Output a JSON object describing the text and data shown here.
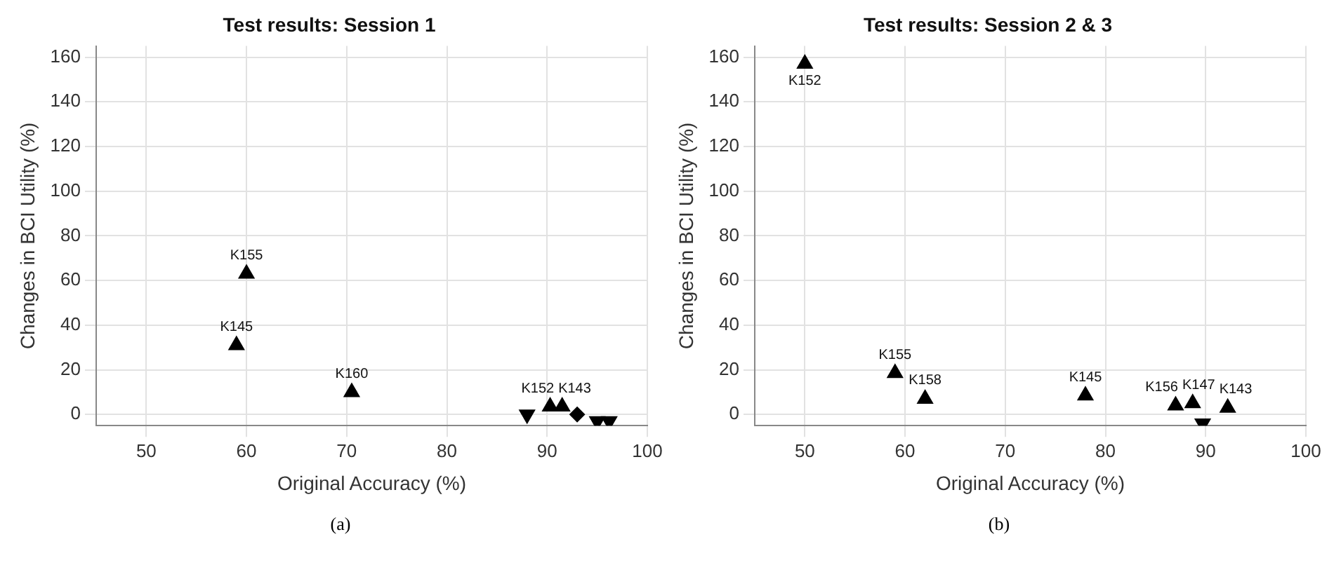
{
  "chart_data": [
    {
      "type": "scatter",
      "title": "Test results: Session 1",
      "xlabel": "Original Accuracy (%)",
      "ylabel": "Changes in BCI Utility (%)",
      "xlim": [
        45,
        100
      ],
      "ylim": [
        -5,
        165
      ],
      "xticks": [
        50,
        60,
        70,
        80,
        90,
        100
      ],
      "yticks": [
        0,
        20,
        40,
        60,
        80,
        100,
        120,
        140,
        160
      ],
      "grid": true,
      "legend": false,
      "series": [
        {
          "color": "#000000",
          "marker": "triangle",
          "x": [
            60,
            59,
            70.5,
            90.3,
            91.5
          ],
          "values": [
            63,
            31,
            10,
            3.5,
            3.5
          ]
        },
        {
          "color": "#000000",
          "marker": "triangle-down",
          "x": [
            88,
            95,
            96.2
          ],
          "values": [
            0,
            -3,
            -3
          ]
        },
        {
          "color": "#000000",
          "marker": "diamond",
          "x": [
            93
          ],
          "values": [
            0
          ]
        }
      ],
      "annotations": [
        {
          "text": "K155",
          "x": 60,
          "y": 63
        },
        {
          "text": "K145",
          "x": 59,
          "y": 31
        },
        {
          "text": "K160",
          "x": 70.5,
          "y": 10
        },
        {
          "text": "K152",
          "x": 90.3,
          "y": 3.5
        },
        {
          "text": "K143",
          "x": 91.5,
          "y": 3.5
        },
        "(a)"
      ]
    },
    {
      "type": "scatter",
      "title": "Test results: Session 2 & 3",
      "xlabel": "Original Accuracy (%)",
      "ylabel": "Changes in BCI Utility (%)",
      "xlim": [
        45,
        100
      ],
      "ylim": [
        -5,
        165
      ],
      "xticks": [
        50,
        60,
        70,
        80,
        90,
        100
      ],
      "yticks": [
        0,
        20,
        40,
        60,
        80,
        100,
        120,
        140,
        160
      ],
      "grid": true,
      "legend": false,
      "series": [
        {
          "color": "#000000",
          "marker": "triangle",
          "x": [
            50,
            59,
            62,
            78,
            87,
            88.7,
            92.2
          ],
          "values": [
            157,
            18.5,
            7,
            8.5,
            4,
            5,
            3
          ]
        },
        {
          "color": "#000000",
          "marker": "triangle-down",
          "x": [
            89.7
          ],
          "values": [
            -4
          ]
        }
      ],
      "annotations": [
        {
          "text": "K152",
          "x": 50,
          "y": 157
        },
        {
          "text": "K155",
          "x": 59,
          "y": 18.5
        },
        {
          "text": "K158",
          "x": 62,
          "y": 7
        },
        {
          "text": "K145",
          "x": 78,
          "y": 8.5
        },
        {
          "text": "K156",
          "x": 87,
          "y": 4
        },
        {
          "text": "K147",
          "x": 88.7,
          "y": 5
        },
        {
          "text": "K143",
          "x": 92.2,
          "y": 3
        },
        "(b)"
      ]
    }
  ]
}
